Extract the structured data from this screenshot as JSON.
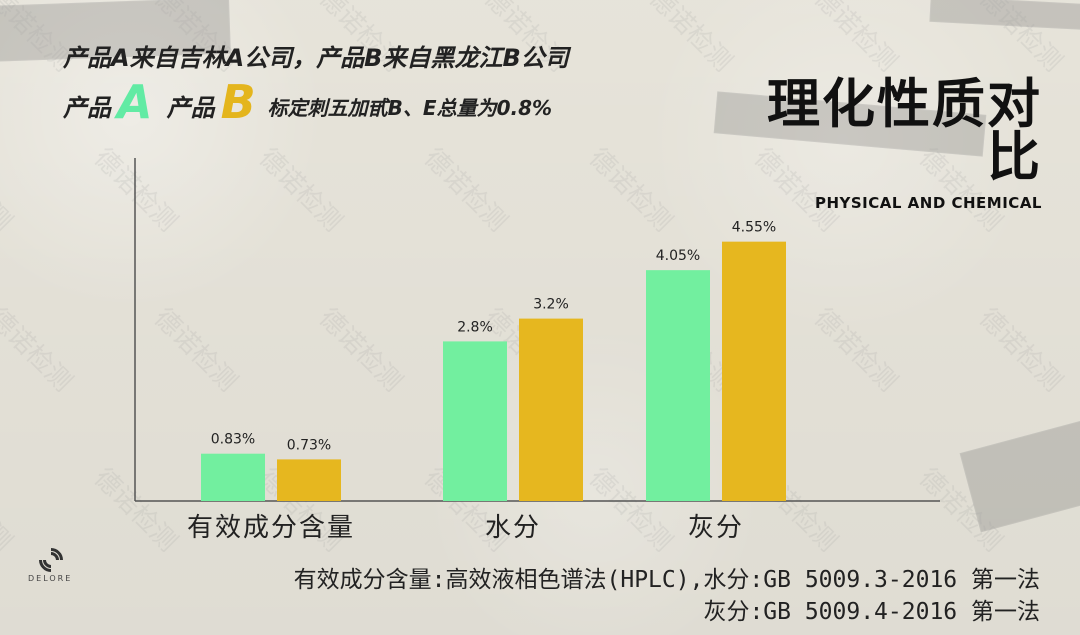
{
  "header": {
    "line1": "产品A来自吉林A公司，产品B来自黑龙江B公司",
    "product_prefix_a": "产品",
    "product_letter_a": "A",
    "product_prefix_b": "产品",
    "product_letter_b": "B",
    "line2_text": "标定刺五加甙B、E总量为0.8%"
  },
  "title": {
    "main": "理化性质对比",
    "sub": "PHYSICAL AND CHEMICAL"
  },
  "logo": {
    "name": "logo-icon",
    "text": "DELORE"
  },
  "watermark": {
    "text": "德诺检测",
    "color": "#a0a0a0"
  },
  "footer": {
    "line1": "有效成分含量:高效液相色谱法(HPLC),水分:GB 5009.3-2016 第一法",
    "line2": "灰分:GB 5009.4-2016 第一法"
  },
  "chart_data": {
    "type": "bar",
    "categories": [
      "有效成分含量",
      "水分",
      "灰分"
    ],
    "series": [
      {
        "values": [
          0.83,
          2.8,
          4.05
        ],
        "labels": [
          "0.83%",
          "2.8%",
          "4.05%"
        ],
        "color": "#72ef9f"
      },
      {
        "values": [
          0.73,
          3.2,
          4.55
        ],
        "labels": [
          "0.73%",
          "3.2%",
          "4.55%"
        ],
        "color": "#e6b71f"
      }
    ],
    "ylim": [
      0,
      6
    ],
    "grid": false,
    "legend": "none"
  },
  "colors": {
    "background": "#ebe8de",
    "product_a": "#62eba4",
    "product_b": "#e4b51d"
  }
}
